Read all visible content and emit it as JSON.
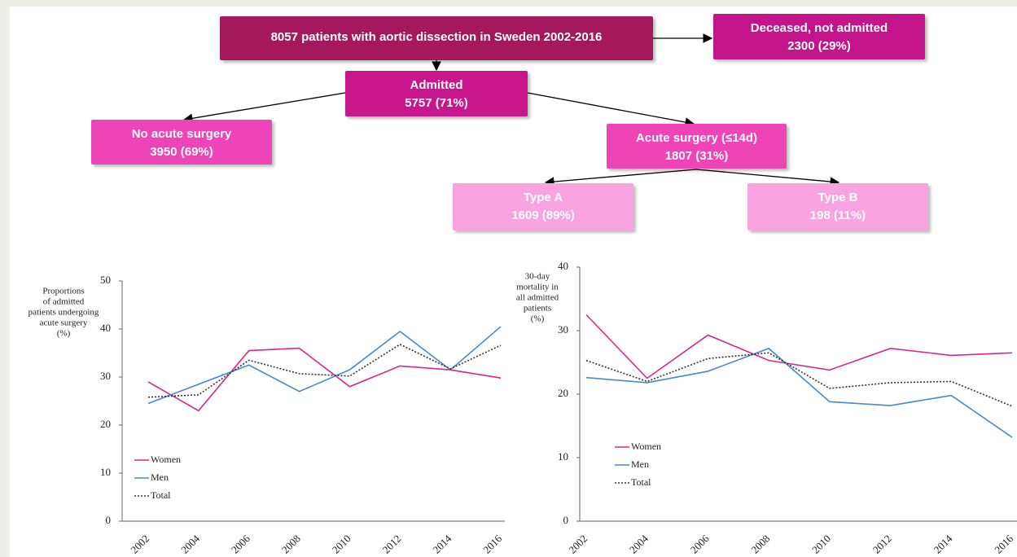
{
  "flowchart": {
    "nodes": [
      {
        "label": "8057 patients with aortic dissection in Sweden 2002-2016"
      },
      {
        "label": "Deceased, not admitted",
        "value": "2300 (29%)"
      },
      {
        "label": "Admitted",
        "value": "5757 (71%)"
      },
      {
        "label": "No acute surgery",
        "value": "3950 (69%)"
      },
      {
        "label": "Acute surgery (≤14d)",
        "value": "1807 (31%)"
      },
      {
        "label": "Type A",
        "value": "1609 (89%)"
      },
      {
        "label": "Type B",
        "value": "198 (11%)"
      }
    ]
  },
  "chart_data": [
    {
      "type": "line",
      "ylabel": [
        "Proportions",
        "of admitted",
        "patients undergoing",
        "acute surgery",
        "(%)"
      ],
      "categories": [
        "2002",
        "2004",
        "2006",
        "2008",
        "2010",
        "2012",
        "2014",
        "2016"
      ],
      "series": [
        {
          "name": "Women",
          "color": "#d6288f",
          "values": [
            29,
            23,
            35.5,
            36,
            28,
            32.3,
            31.5,
            29.8
          ]
        },
        {
          "name": "Men",
          "color": "#4a8ac4",
          "values": [
            24.5,
            28.5,
            32.5,
            27,
            31.5,
            39.5,
            31.5,
            40.5
          ]
        },
        {
          "name": "Total",
          "color": "#333333",
          "values": [
            25.8,
            26.3,
            33.5,
            30.7,
            30.2,
            36.8,
            31.7,
            36.6
          ]
        }
      ],
      "ylim": [
        0,
        50
      ],
      "yticks": [
        0,
        10,
        20,
        30,
        40,
        50
      ],
      "legend": "lower left"
    },
    {
      "type": "line",
      "ylabel": [
        "30-day",
        "mortality in",
        "all admitted",
        "patients",
        "(%)"
      ],
      "categories": [
        "2002",
        "2004",
        "2006",
        "2008",
        "2010",
        "2012",
        "2014",
        "2016"
      ],
      "series": [
        {
          "name": "Women",
          "color": "#d6288f",
          "values": [
            32.5,
            22.5,
            29.3,
            25.3,
            23.8,
            27.2,
            26.1,
            26.5
          ]
        },
        {
          "name": "Men",
          "color": "#4a8ac4",
          "values": [
            22.6,
            21.8,
            23.6,
            27.2,
            18.8,
            18.2,
            19.8,
            13.2
          ]
        },
        {
          "name": "Total",
          "color": "#333333",
          "values": [
            25.3,
            22,
            25.6,
            26.5,
            20.9,
            21.8,
            22,
            18.1
          ]
        }
      ],
      "ylim": [
        0,
        40
      ],
      "yticks": [
        0,
        10,
        20,
        30,
        40
      ],
      "legend": "lower left"
    }
  ]
}
